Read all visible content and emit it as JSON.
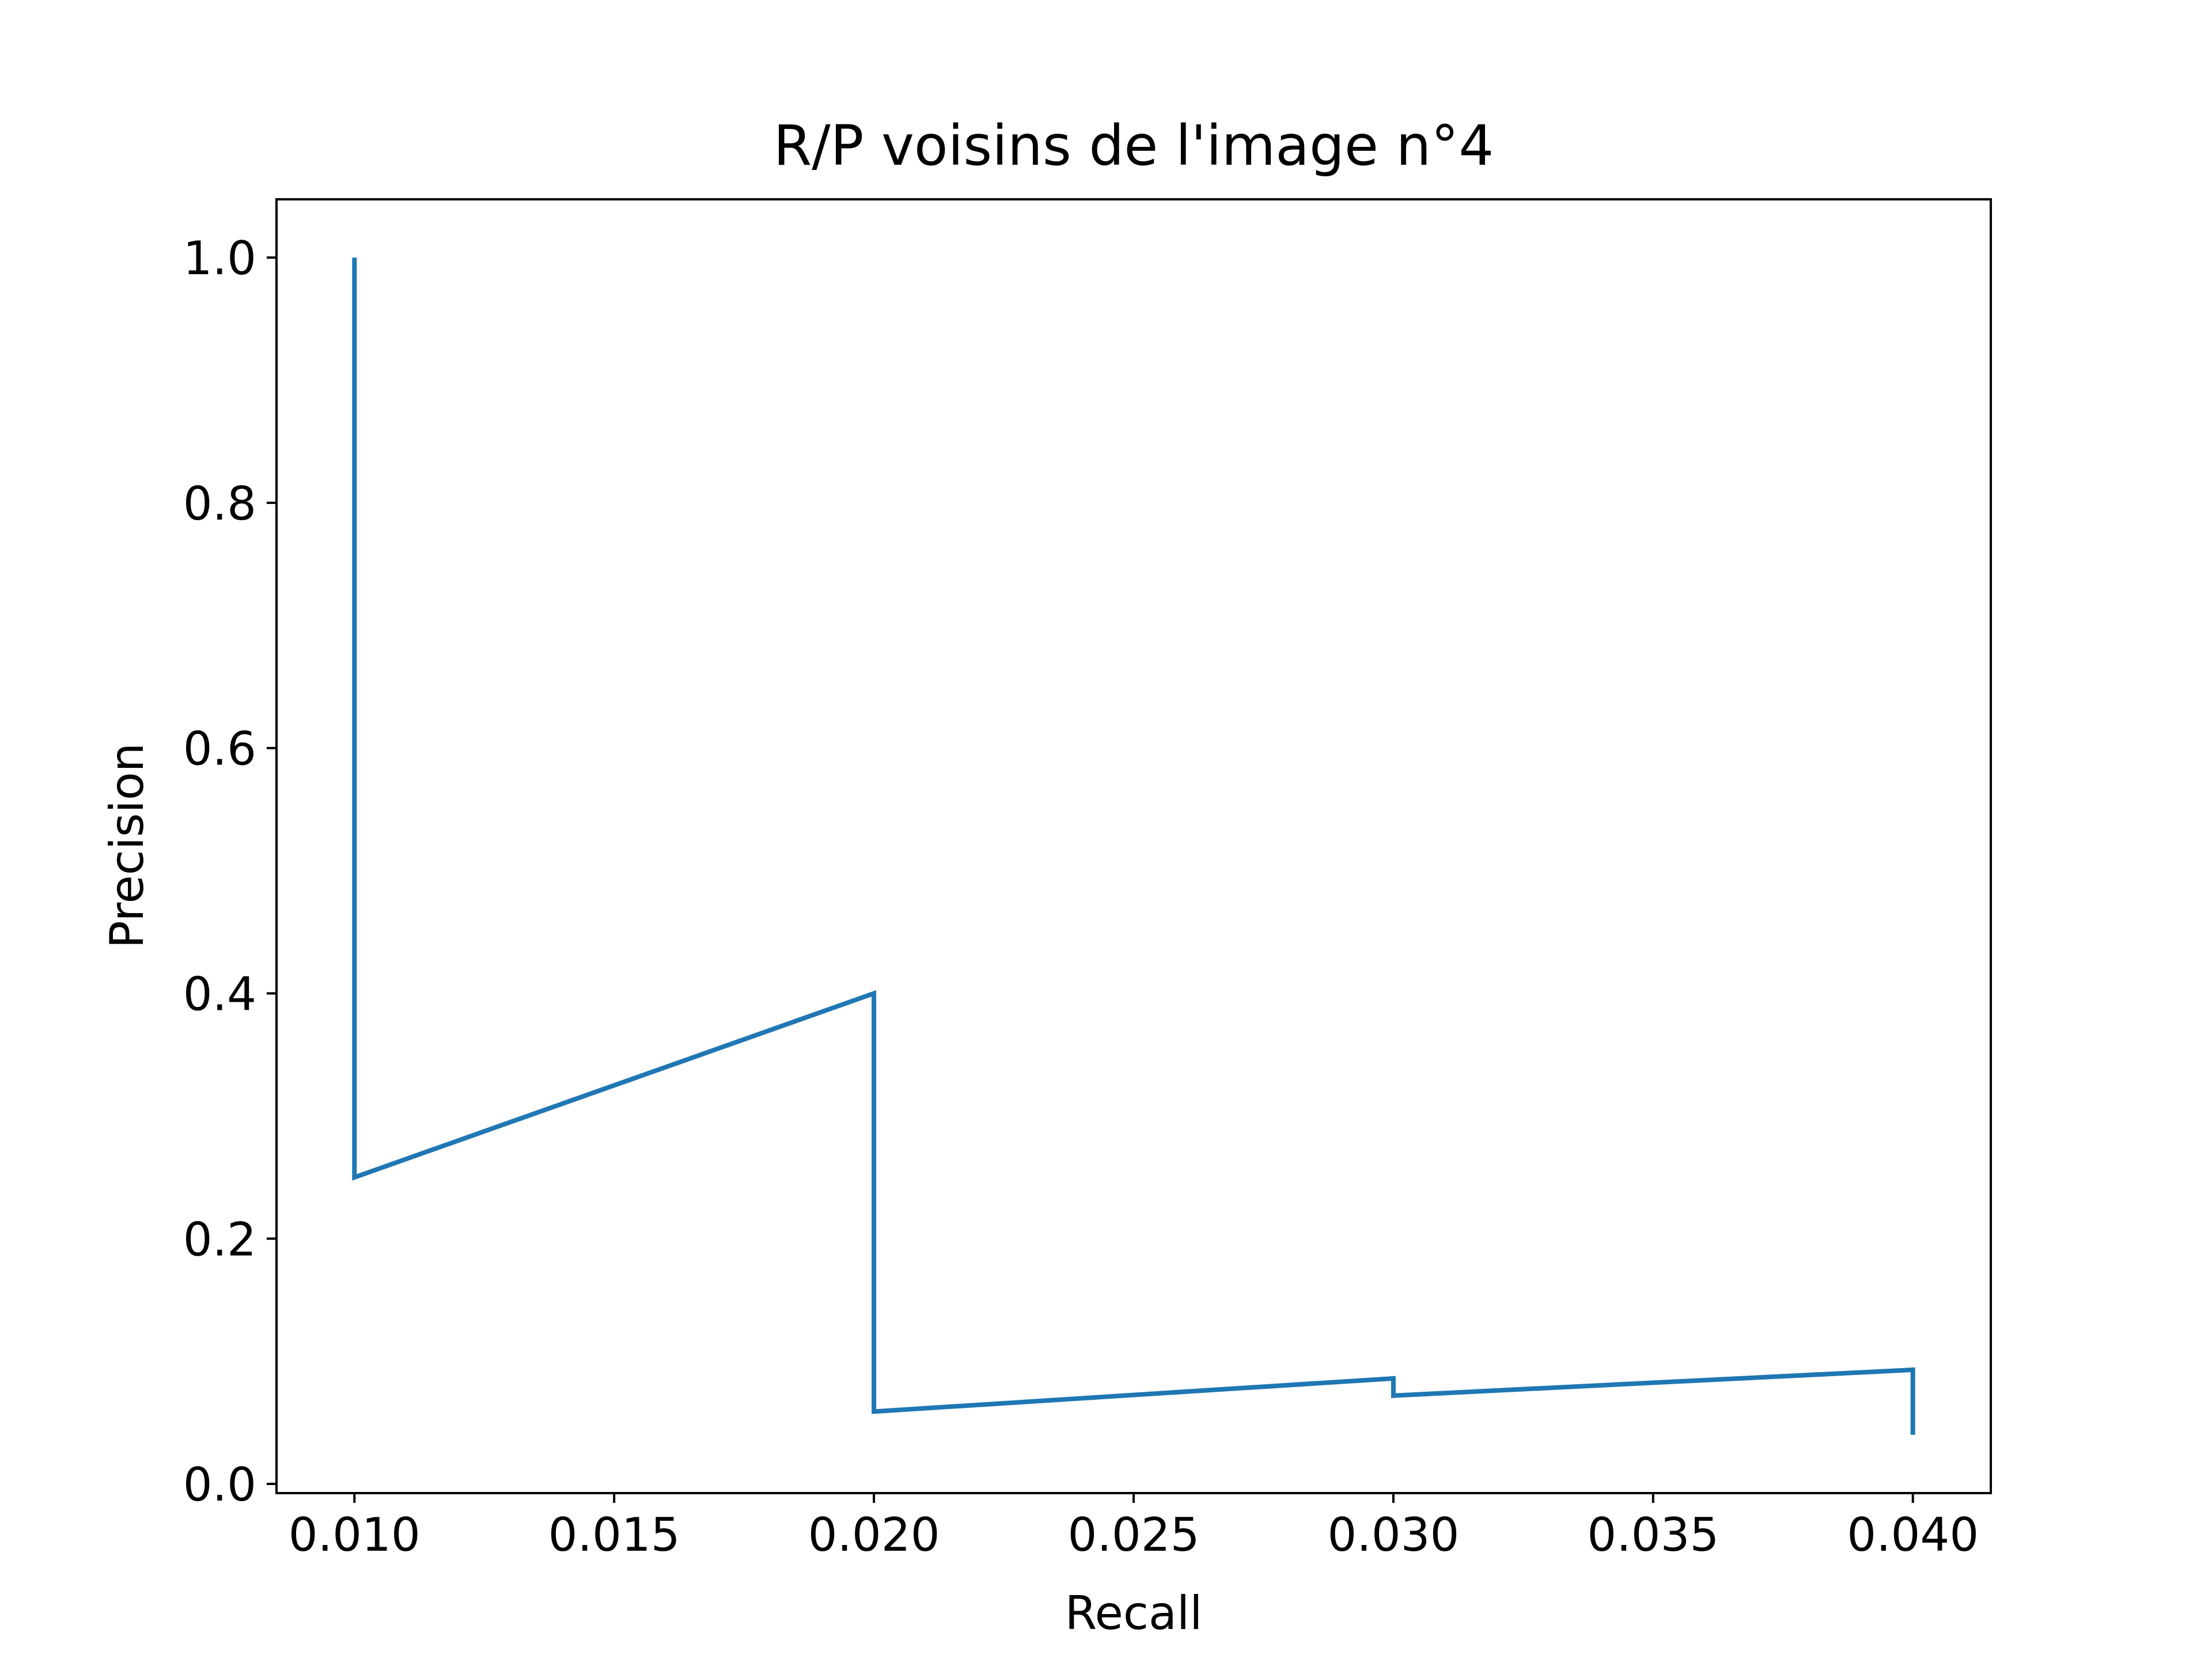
{
  "chart_data": {
    "type": "line",
    "title": "R/P voisins de l'image n°4",
    "xlabel": "Recall",
    "ylabel": "Precision",
    "xlim": [
      0.0085,
      0.0415
    ],
    "ylim": [
      -0.0075,
      1.0475
    ],
    "x_ticks": [
      0.01,
      0.015,
      0.02,
      0.025,
      0.03,
      0.035,
      0.04
    ],
    "x_tick_labels": [
      "0.010",
      "0.015",
      "0.020",
      "0.025",
      "0.030",
      "0.035",
      "0.040"
    ],
    "y_ticks": [
      0.0,
      0.2,
      0.4,
      0.6,
      0.8,
      1.0
    ],
    "y_tick_labels": [
      "0.0",
      "0.2",
      "0.4",
      "0.6",
      "0.8",
      "1.0"
    ],
    "grid": false,
    "series": [
      {
        "color": "#1f77b4",
        "x": [
          0.01,
          0.01,
          0.02,
          0.02,
          0.03,
          0.03,
          0.04,
          0.04
        ],
        "y": [
          1.0,
          0.25,
          0.4,
          0.059,
          0.086,
          0.072,
          0.093,
          0.04
        ]
      }
    ]
  }
}
